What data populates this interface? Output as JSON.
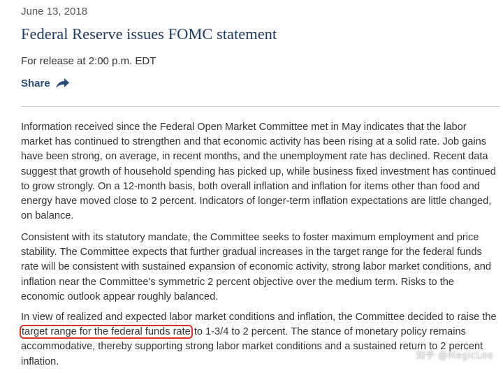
{
  "article": {
    "date": "June 13, 2018",
    "title": "Federal Reserve issues FOMC statement",
    "release": "For release at 2:00 p.m. EDT",
    "share_label": "Share"
  },
  "body": {
    "p1": "Information received since the Federal Open Market Committee met in May indicates that the labor market has continued to strengthen and that economic activity has been rising at a solid rate. Job gains have been strong, on average, in recent months, and the unemployment rate has declined. Recent data suggest that growth of household spending has picked up, while business fixed investment has continued to grow strongly. On a 12-month basis, both overall inflation and inflation for items other than food and energy have moved close to 2 percent. Indicators of longer-term inflation expectations are little changed, on balance.",
    "p2": "Consistent with its statutory mandate, the Committee seeks to foster maximum employment and price stability. The Committee expects that further gradual increases in the target range for the federal funds rate will be consistent with sustained expansion of economic activity, strong labor market conditions, and inflation near the Committee's symmetric 2 percent objective over the medium term. Risks to the economic outlook appear roughly balanced.",
    "p3_before": "In view of realized and expected labor market conditions and inflation, the Committee decided to raise the ",
    "p3_highlight": "target range for the federal funds rate",
    "p3_after": " to 1-3/4 to 2 percent. The stance of monetary policy remains accommodative, thereby supporting strong labor market conditions and a sustained return to 2 percent inflation."
  },
  "watermark": "知乎 @MagicLee",
  "icons": {
    "share": "share-arrow-icon"
  },
  "colors": {
    "title": "#1f3b63",
    "share": "#2a4c78",
    "highlight_border": "#d9302a"
  }
}
